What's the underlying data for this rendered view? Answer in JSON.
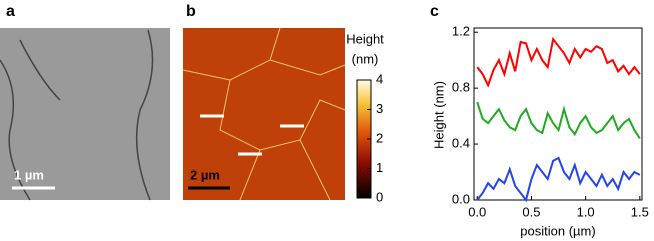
{
  "panels": {
    "a": {
      "label": "a",
      "scale_bar": "1 µm"
    },
    "b": {
      "label": "b",
      "scale_bar": "2 µm",
      "colorbar": {
        "title": [
          "Height",
          "(nm)"
        ],
        "lim": [
          0,
          4
        ],
        "ticks": [
          0,
          1,
          2,
          3,
          4
        ]
      }
    },
    "c": {
      "label": "c"
    }
  },
  "chart_data": {
    "type": "line",
    "xlabel": "position (µm)",
    "ylabel": "Height (nm)",
    "x": [
      0,
      0.05,
      0.1,
      0.15,
      0.2,
      0.25,
      0.3,
      0.35,
      0.4,
      0.45,
      0.5,
      0.55,
      0.6,
      0.65,
      0.7,
      0.75,
      0.8,
      0.85,
      0.9,
      0.95,
      1.0,
      1.05,
      1.1,
      1.15,
      1.2,
      1.25,
      1.3,
      1.35,
      1.4,
      1.45,
      1.5
    ],
    "series": [
      {
        "color": "#ff0000",
        "values": [
          0.95,
          0.9,
          0.82,
          0.93,
          1.0,
          0.9,
          1.05,
          0.92,
          1.13,
          1.12,
          1.0,
          1.08,
          1.0,
          0.95,
          1.15,
          1.1,
          1.05,
          0.98,
          1.08,
          1.02,
          1.08,
          1.06,
          1.1,
          1.08,
          0.98,
          1.0,
          0.92,
          0.96,
          0.9,
          0.95,
          0.9
        ]
      },
      {
        "color": "#22aa22",
        "values": [
          0.7,
          0.58,
          0.55,
          0.6,
          0.65,
          0.57,
          0.52,
          0.5,
          0.6,
          0.65,
          0.55,
          0.5,
          0.48,
          0.62,
          0.55,
          0.5,
          0.65,
          0.52,
          0.47,
          0.55,
          0.6,
          0.52,
          0.48,
          0.5,
          0.55,
          0.6,
          0.5,
          0.55,
          0.58,
          0.5,
          0.44
        ]
      },
      {
        "color": "#2244ee",
        "values": [
          0.0,
          0.05,
          0.12,
          0.08,
          0.15,
          0.12,
          0.22,
          0.1,
          0.05,
          0.0,
          0.15,
          0.25,
          0.2,
          0.15,
          0.28,
          0.3,
          0.2,
          0.15,
          0.25,
          0.12,
          0.2,
          0.15,
          0.1,
          0.18,
          0.1,
          0.15,
          0.08,
          0.2,
          0.15,
          0.2,
          0.18
        ]
      }
    ],
    "xlim": [
      -0.03,
      1.52
    ],
    "xticks": [
      {
        "value": 0,
        "label": "0.0"
      },
      {
        "value": 0.5,
        "label": "0.5"
      },
      {
        "value": 1,
        "label": "1.0"
      },
      {
        "value": 1.5,
        "label": "1.5"
      }
    ],
    "ylim": [
      0,
      1.23
    ],
    "yticks": [
      {
        "value": 0,
        "label": "0.0"
      },
      {
        "value": 0.4,
        "label": "0.4"
      },
      {
        "value": 0.8,
        "label": "0.8"
      },
      {
        "value": 1.2,
        "label": "1.2"
      }
    ]
  }
}
